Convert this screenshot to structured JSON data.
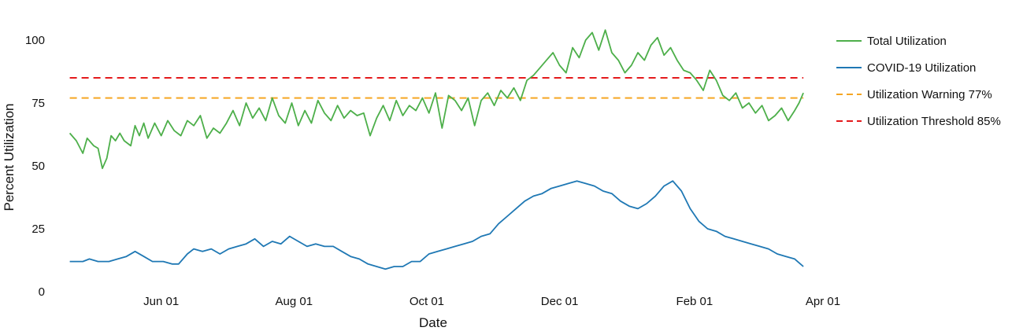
{
  "chart_data": {
    "type": "line",
    "xlabel": "Date",
    "ylabel": "Percent Utilization",
    "ylim": [
      0,
      100
    ],
    "y_ticks": [
      0,
      25,
      50,
      75,
      100
    ],
    "x_range": [
      "2020-04-14",
      "2021-04-01"
    ],
    "x_ticks": [
      {
        "date": "2020-06-01",
        "label": "Jun 01"
      },
      {
        "date": "2020-08-01",
        "label": "Aug 01"
      },
      {
        "date": "2020-10-01",
        "label": "Oct 01"
      },
      {
        "date": "2020-12-01",
        "label": "Dec 01"
      },
      {
        "date": "2021-02-01",
        "label": "Feb 01"
      },
      {
        "date": "2021-04-01",
        "label": "Apr 01"
      }
    ],
    "grid": false,
    "legend_position": "right",
    "series": [
      {
        "name": "Total Utilization",
        "color": "#4daf4a",
        "style": "solid",
        "points": [
          [
            "2020-04-20",
            63
          ],
          [
            "2020-04-23",
            60
          ],
          [
            "2020-04-26",
            55
          ],
          [
            "2020-04-28",
            61
          ],
          [
            "2020-05-01",
            58
          ],
          [
            "2020-05-03",
            57
          ],
          [
            "2020-05-05",
            49
          ],
          [
            "2020-05-07",
            53
          ],
          [
            "2020-05-09",
            62
          ],
          [
            "2020-05-11",
            60
          ],
          [
            "2020-05-13",
            63
          ],
          [
            "2020-05-15",
            60
          ],
          [
            "2020-05-18",
            58
          ],
          [
            "2020-05-20",
            66
          ],
          [
            "2020-05-22",
            62
          ],
          [
            "2020-05-24",
            67
          ],
          [
            "2020-05-26",
            61
          ],
          [
            "2020-05-29",
            67
          ],
          [
            "2020-06-01",
            62
          ],
          [
            "2020-06-04",
            68
          ],
          [
            "2020-06-07",
            64
          ],
          [
            "2020-06-10",
            62
          ],
          [
            "2020-06-13",
            68
          ],
          [
            "2020-06-16",
            66
          ],
          [
            "2020-06-19",
            70
          ],
          [
            "2020-06-22",
            61
          ],
          [
            "2020-06-25",
            65
          ],
          [
            "2020-06-28",
            63
          ],
          [
            "2020-07-01",
            67
          ],
          [
            "2020-07-04",
            72
          ],
          [
            "2020-07-07",
            66
          ],
          [
            "2020-07-10",
            75
          ],
          [
            "2020-07-13",
            69
          ],
          [
            "2020-07-16",
            73
          ],
          [
            "2020-07-19",
            68
          ],
          [
            "2020-07-22",
            77
          ],
          [
            "2020-07-25",
            70
          ],
          [
            "2020-07-28",
            67
          ],
          [
            "2020-07-31",
            75
          ],
          [
            "2020-08-03",
            66
          ],
          [
            "2020-08-06",
            72
          ],
          [
            "2020-08-09",
            67
          ],
          [
            "2020-08-12",
            76
          ],
          [
            "2020-08-15",
            71
          ],
          [
            "2020-08-18",
            68
          ],
          [
            "2020-08-21",
            74
          ],
          [
            "2020-08-24",
            69
          ],
          [
            "2020-08-27",
            72
          ],
          [
            "2020-08-30",
            70
          ],
          [
            "2020-09-02",
            71
          ],
          [
            "2020-09-05",
            62
          ],
          [
            "2020-09-08",
            69
          ],
          [
            "2020-09-11",
            74
          ],
          [
            "2020-09-14",
            68
          ],
          [
            "2020-09-17",
            76
          ],
          [
            "2020-09-20",
            70
          ],
          [
            "2020-09-23",
            74
          ],
          [
            "2020-09-26",
            72
          ],
          [
            "2020-09-29",
            77
          ],
          [
            "2020-10-02",
            71
          ],
          [
            "2020-10-05",
            79
          ],
          [
            "2020-10-08",
            65
          ],
          [
            "2020-10-11",
            78
          ],
          [
            "2020-10-14",
            76
          ],
          [
            "2020-10-17",
            72
          ],
          [
            "2020-10-20",
            77
          ],
          [
            "2020-10-23",
            66
          ],
          [
            "2020-10-26",
            76
          ],
          [
            "2020-10-29",
            79
          ],
          [
            "2020-11-01",
            74
          ],
          [
            "2020-11-04",
            80
          ],
          [
            "2020-11-07",
            77
          ],
          [
            "2020-11-10",
            81
          ],
          [
            "2020-11-13",
            76
          ],
          [
            "2020-11-16",
            84
          ],
          [
            "2020-11-19",
            86
          ],
          [
            "2020-11-22",
            89
          ],
          [
            "2020-11-25",
            92
          ],
          [
            "2020-11-28",
            95
          ],
          [
            "2020-12-01",
            90
          ],
          [
            "2020-12-04",
            87
          ],
          [
            "2020-12-07",
            97
          ],
          [
            "2020-12-10",
            93
          ],
          [
            "2020-12-13",
            100
          ],
          [
            "2020-12-16",
            103
          ],
          [
            "2020-12-19",
            96
          ],
          [
            "2020-12-22",
            104
          ],
          [
            "2020-12-25",
            95
          ],
          [
            "2020-12-28",
            92
          ],
          [
            "2020-12-31",
            87
          ],
          [
            "2021-01-03",
            90
          ],
          [
            "2021-01-06",
            95
          ],
          [
            "2021-01-09",
            92
          ],
          [
            "2021-01-12",
            98
          ],
          [
            "2021-01-15",
            101
          ],
          [
            "2021-01-18",
            94
          ],
          [
            "2021-01-21",
            97
          ],
          [
            "2021-01-24",
            92
          ],
          [
            "2021-01-27",
            88
          ],
          [
            "2021-01-30",
            87
          ],
          [
            "2021-02-02",
            84
          ],
          [
            "2021-02-05",
            80
          ],
          [
            "2021-02-08",
            88
          ],
          [
            "2021-02-11",
            84
          ],
          [
            "2021-02-14",
            78
          ],
          [
            "2021-02-17",
            76
          ],
          [
            "2021-02-20",
            79
          ],
          [
            "2021-02-23",
            73
          ],
          [
            "2021-02-26",
            75
          ],
          [
            "2021-03-01",
            71
          ],
          [
            "2021-03-04",
            74
          ],
          [
            "2021-03-07",
            68
          ],
          [
            "2021-03-10",
            70
          ],
          [
            "2021-03-13",
            73
          ],
          [
            "2021-03-16",
            68
          ],
          [
            "2021-03-19",
            72
          ],
          [
            "2021-03-21",
            75
          ],
          [
            "2021-03-23",
            79
          ]
        ]
      },
      {
        "name": "COVID-19 Utilization",
        "color": "#1f78b4",
        "style": "solid",
        "points": [
          [
            "2020-04-20",
            12
          ],
          [
            "2020-04-26",
            12
          ],
          [
            "2020-04-29",
            13
          ],
          [
            "2020-05-03",
            12
          ],
          [
            "2020-05-08",
            12
          ],
          [
            "2020-05-12",
            13
          ],
          [
            "2020-05-16",
            14
          ],
          [
            "2020-05-20",
            16
          ],
          [
            "2020-05-24",
            14
          ],
          [
            "2020-05-28",
            12
          ],
          [
            "2020-06-02",
            12
          ],
          [
            "2020-06-06",
            11
          ],
          [
            "2020-06-09",
            11
          ],
          [
            "2020-06-13",
            15
          ],
          [
            "2020-06-16",
            17
          ],
          [
            "2020-06-20",
            16
          ],
          [
            "2020-06-24",
            17
          ],
          [
            "2020-06-28",
            15
          ],
          [
            "2020-07-02",
            17
          ],
          [
            "2020-07-06",
            18
          ],
          [
            "2020-07-10",
            19
          ],
          [
            "2020-07-14",
            21
          ],
          [
            "2020-07-18",
            18
          ],
          [
            "2020-07-22",
            20
          ],
          [
            "2020-07-26",
            19
          ],
          [
            "2020-07-30",
            22
          ],
          [
            "2020-08-03",
            20
          ],
          [
            "2020-08-07",
            18
          ],
          [
            "2020-08-11",
            19
          ],
          [
            "2020-08-15",
            18
          ],
          [
            "2020-08-19",
            18
          ],
          [
            "2020-08-23",
            16
          ],
          [
            "2020-08-27",
            14
          ],
          [
            "2020-08-31",
            13
          ],
          [
            "2020-09-04",
            11
          ],
          [
            "2020-09-08",
            10
          ],
          [
            "2020-09-12",
            9
          ],
          [
            "2020-09-16",
            10
          ],
          [
            "2020-09-20",
            10
          ],
          [
            "2020-09-24",
            12
          ],
          [
            "2020-09-28",
            12
          ],
          [
            "2020-10-02",
            15
          ],
          [
            "2020-10-06",
            16
          ],
          [
            "2020-10-10",
            17
          ],
          [
            "2020-10-14",
            18
          ],
          [
            "2020-10-18",
            19
          ],
          [
            "2020-10-22",
            20
          ],
          [
            "2020-10-26",
            22
          ],
          [
            "2020-10-30",
            23
          ],
          [
            "2020-11-03",
            27
          ],
          [
            "2020-11-07",
            30
          ],
          [
            "2020-11-11",
            33
          ],
          [
            "2020-11-15",
            36
          ],
          [
            "2020-11-19",
            38
          ],
          [
            "2020-11-23",
            39
          ],
          [
            "2020-11-27",
            41
          ],
          [
            "2020-12-01",
            42
          ],
          [
            "2020-12-05",
            43
          ],
          [
            "2020-12-09",
            44
          ],
          [
            "2020-12-13",
            43
          ],
          [
            "2020-12-17",
            42
          ],
          [
            "2020-12-21",
            40
          ],
          [
            "2020-12-25",
            39
          ],
          [
            "2020-12-29",
            36
          ],
          [
            "2021-01-02",
            34
          ],
          [
            "2021-01-06",
            33
          ],
          [
            "2021-01-10",
            35
          ],
          [
            "2021-01-14",
            38
          ],
          [
            "2021-01-18",
            42
          ],
          [
            "2021-01-22",
            44
          ],
          [
            "2021-01-26",
            40
          ],
          [
            "2021-01-30",
            33
          ],
          [
            "2021-02-03",
            28
          ],
          [
            "2021-02-07",
            25
          ],
          [
            "2021-02-11",
            24
          ],
          [
            "2021-02-15",
            22
          ],
          [
            "2021-02-19",
            21
          ],
          [
            "2021-02-23",
            20
          ],
          [
            "2021-02-27",
            19
          ],
          [
            "2021-03-03",
            18
          ],
          [
            "2021-03-07",
            17
          ],
          [
            "2021-03-11",
            15
          ],
          [
            "2021-03-15",
            14
          ],
          [
            "2021-03-19",
            13
          ],
          [
            "2021-03-23",
            10
          ]
        ]
      },
      {
        "name": "Utilization Warning 77%",
        "color": "#f5a623",
        "style": "dashed",
        "points": [
          [
            "2020-04-20",
            77
          ],
          [
            "2021-03-23",
            77
          ]
        ]
      },
      {
        "name": "Utilization Threshold 85%",
        "color": "#e41a1c",
        "style": "dashed",
        "points": [
          [
            "2020-04-20",
            85
          ],
          [
            "2021-03-23",
            85
          ]
        ]
      }
    ]
  }
}
